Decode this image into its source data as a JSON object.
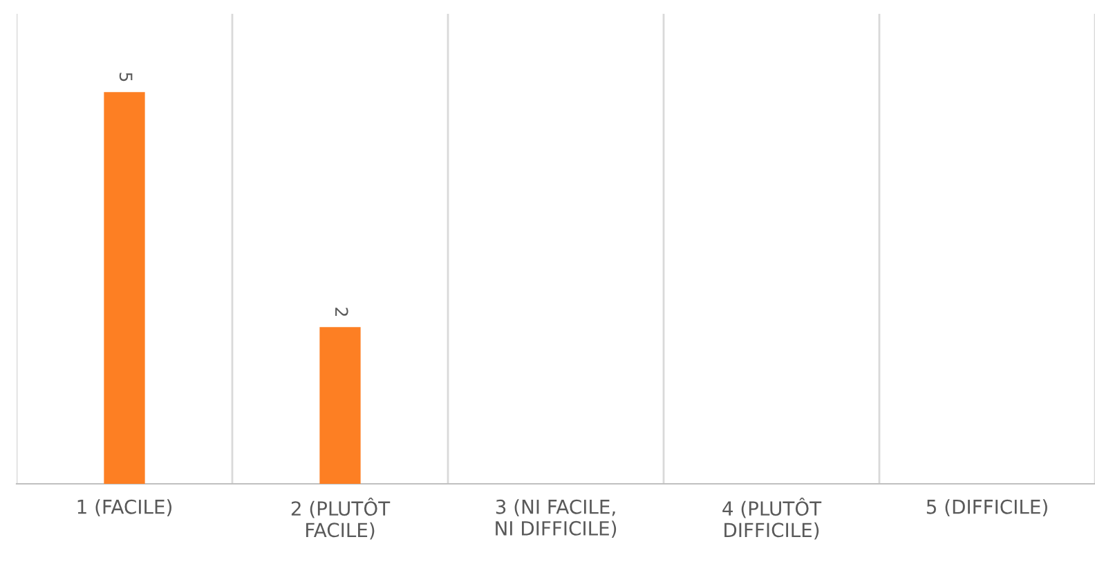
{
  "chart_data": {
    "type": "bar",
    "categories": [
      "1 (FACILE)",
      "2 (PLUTÔT\nFACILE)",
      "3 (NI FACILE,\nNI DIFFICILE)",
      "4 (PLUTÔT\nDIFFICILE)",
      "5 (DIFFICILE)"
    ],
    "values": [
      5,
      2,
      0,
      0,
      0
    ],
    "value_labels": [
      "5",
      "2",
      null,
      null,
      null
    ],
    "color": "#fd7f23",
    "ylim": [
      0,
      6
    ],
    "grid": "x"
  }
}
